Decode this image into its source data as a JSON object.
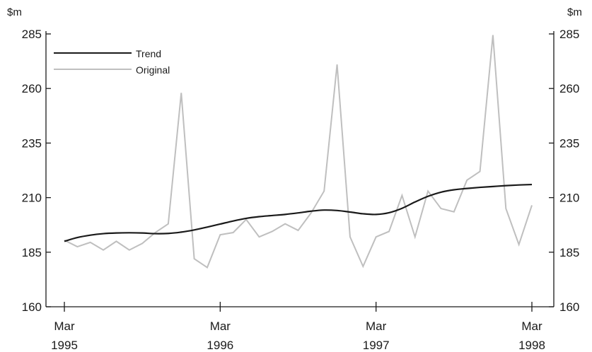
{
  "chart_data": {
    "type": "line",
    "title": "",
    "xlabel": "",
    "ylabel": "",
    "y_unit_left": "$m",
    "y_unit_right": "$m",
    "ylim": [
      160,
      285
    ],
    "yticks": [
      160,
      185,
      210,
      235,
      260,
      285
    ],
    "x_tick_labels": [
      {
        "month": "Mar",
        "year": "1995"
      },
      {
        "month": "Mar",
        "year": "1996"
      },
      {
        "month": "Mar",
        "year": "1997"
      },
      {
        "month": "Mar",
        "year": "1998"
      }
    ],
    "x": [
      "1995-03",
      "1995-04",
      "1995-05",
      "1995-06",
      "1995-07",
      "1995-08",
      "1995-09",
      "1995-10",
      "1995-11",
      "1995-12",
      "1996-01",
      "1996-02",
      "1996-03",
      "1996-04",
      "1996-05",
      "1996-06",
      "1996-07",
      "1996-08",
      "1996-09",
      "1996-10",
      "1996-11",
      "1996-12",
      "1997-01",
      "1997-02",
      "1997-03",
      "1997-04",
      "1997-05",
      "1997-06",
      "1997-07",
      "1997-08",
      "1997-09",
      "1997-10",
      "1997-11",
      "1997-12",
      "1998-01",
      "1998-02",
      "1998-03"
    ],
    "legend_position": "top-left",
    "grid": false,
    "series": [
      {
        "name": "Trend",
        "color": "#1a1a1a",
        "values": [
          190.0,
          191.7,
          192.8,
          193.5,
          193.8,
          193.9,
          193.8,
          193.5,
          193.6,
          194.2,
          195.2,
          196.5,
          197.9,
          199.3,
          200.5,
          201.3,
          201.8,
          202.3,
          203.0,
          203.8,
          204.3,
          204.1,
          203.4,
          202.6,
          202.3,
          203.1,
          205.1,
          208.0,
          210.6,
          212.5,
          213.6,
          214.2,
          214.7,
          215.1,
          215.5,
          215.8,
          216.0
        ]
      },
      {
        "name": "Original",
        "color": "#bfbfbf",
        "values": [
          190.5,
          187.5,
          189.5,
          186.0,
          190.0,
          186.0,
          189.0,
          194.0,
          198.0,
          258.0,
          182.0,
          178.0,
          193.0,
          194.0,
          200.0,
          192.0,
          194.5,
          198.0,
          195.0,
          203.0,
          213.0,
          271.0,
          192.0,
          178.5,
          192.0,
          194.5,
          211.0,
          192.0,
          213.0,
          205.0,
          203.5,
          218.0,
          222.0,
          284.5,
          205.0,
          188.5,
          206.5
        ]
      }
    ]
  }
}
